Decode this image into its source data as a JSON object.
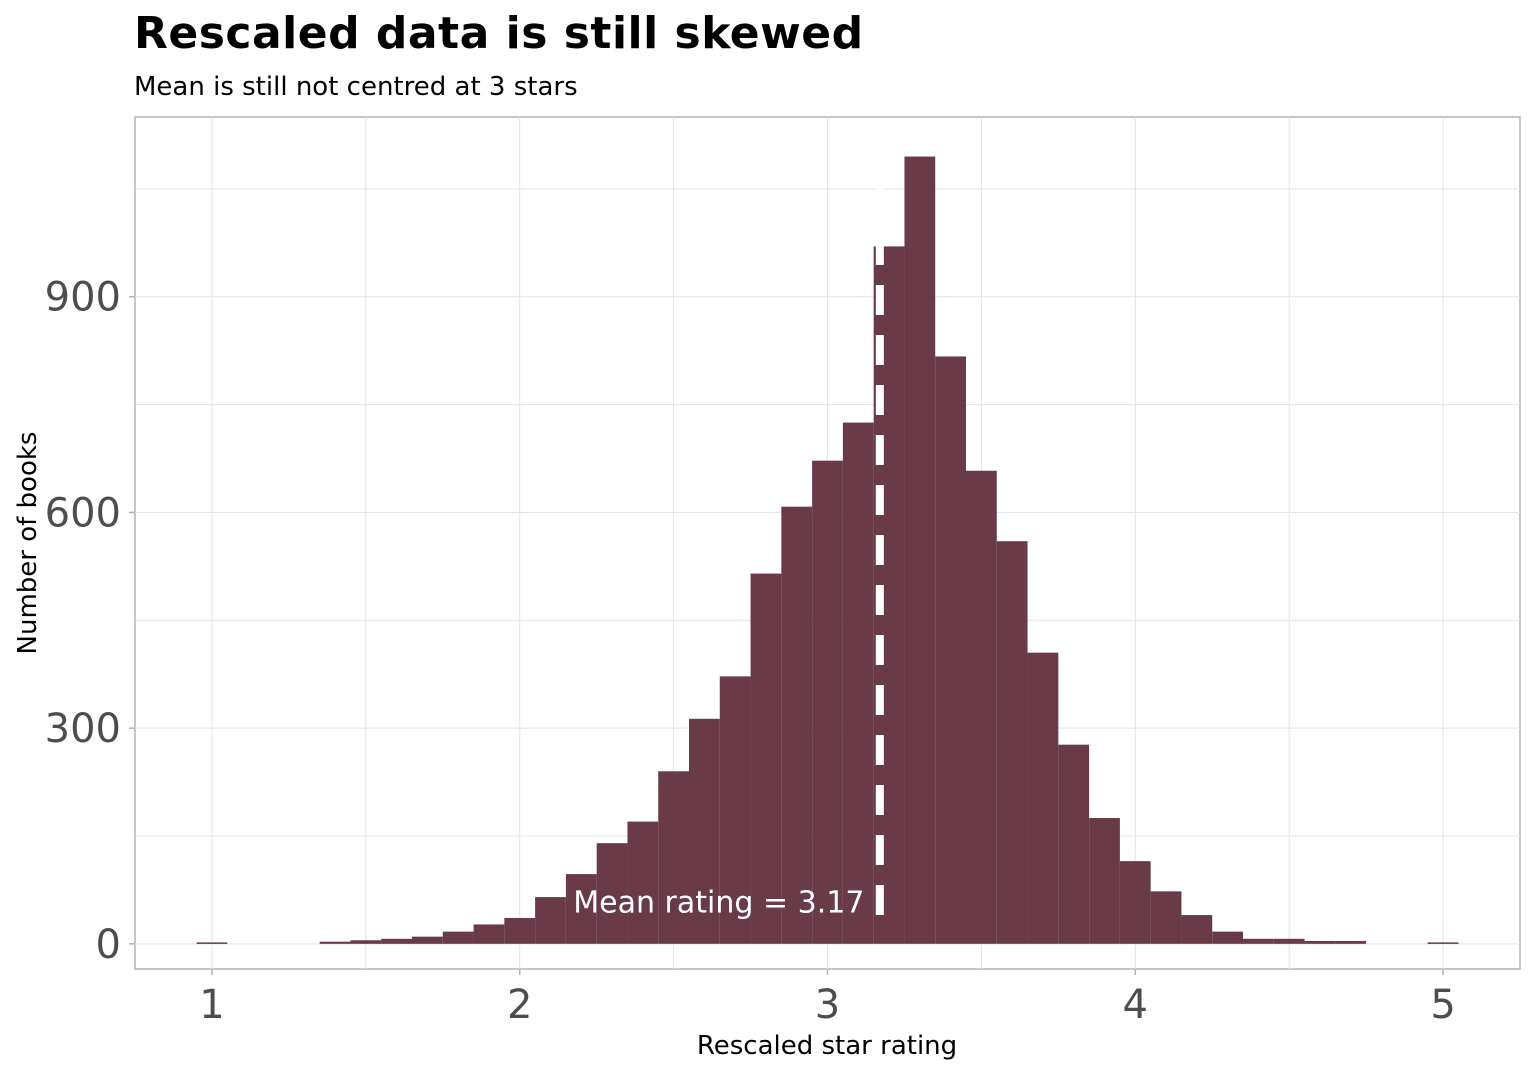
{
  "chart_data": {
    "type": "bar",
    "title": "Rescaled data is still skewed",
    "subtitle": "Mean is still not centred at 3 stars",
    "xlabel": "Rescaled star rating",
    "ylabel": "Number of books",
    "xlim": [
      0.75,
      5.25
    ],
    "ylim": [
      -35,
      1150
    ],
    "x_ticks": [
      1,
      2,
      3,
      4,
      5
    ],
    "y_ticks": [
      0,
      300,
      600,
      900
    ],
    "grid": true,
    "bar_color": "#5c2a39",
    "bin_width": 0.1,
    "bins": [
      {
        "x": 1.0,
        "count": 2
      },
      {
        "x": 1.4,
        "count": 3
      },
      {
        "x": 1.5,
        "count": 5
      },
      {
        "x": 1.6,
        "count": 7
      },
      {
        "x": 1.7,
        "count": 10
      },
      {
        "x": 1.8,
        "count": 17
      },
      {
        "x": 1.9,
        "count": 27
      },
      {
        "x": 2.0,
        "count": 36
      },
      {
        "x": 2.1,
        "count": 65
      },
      {
        "x": 2.2,
        "count": 97
      },
      {
        "x": 2.3,
        "count": 140
      },
      {
        "x": 2.4,
        "count": 170
      },
      {
        "x": 2.5,
        "count": 240
      },
      {
        "x": 2.6,
        "count": 313
      },
      {
        "x": 2.7,
        "count": 372
      },
      {
        "x": 2.8,
        "count": 515
      },
      {
        "x": 2.9,
        "count": 608
      },
      {
        "x": 3.0,
        "count": 672
      },
      {
        "x": 3.1,
        "count": 725
      },
      {
        "x": 3.2,
        "count": 970
      },
      {
        "x": 3.3,
        "count": 1095
      },
      {
        "x": 3.4,
        "count": 817
      },
      {
        "x": 3.5,
        "count": 658
      },
      {
        "x": 3.6,
        "count": 560
      },
      {
        "x": 3.7,
        "count": 405
      },
      {
        "x": 3.8,
        "count": 277
      },
      {
        "x": 3.9,
        "count": 175
      },
      {
        "x": 4.0,
        "count": 115
      },
      {
        "x": 4.1,
        "count": 73
      },
      {
        "x": 4.2,
        "count": 40
      },
      {
        "x": 4.3,
        "count": 17
      },
      {
        "x": 4.4,
        "count": 7
      },
      {
        "x": 4.5,
        "count": 7
      },
      {
        "x": 4.6,
        "count": 4
      },
      {
        "x": 4.7,
        "count": 4
      },
      {
        "x": 5.0,
        "count": 2
      }
    ],
    "mean_line": {
      "x": 3.17,
      "style": "dashed",
      "color": "#ffffff"
    },
    "annotation": {
      "text": "Mean rating = 3.17",
      "x": 3.12,
      "y": 60
    }
  }
}
